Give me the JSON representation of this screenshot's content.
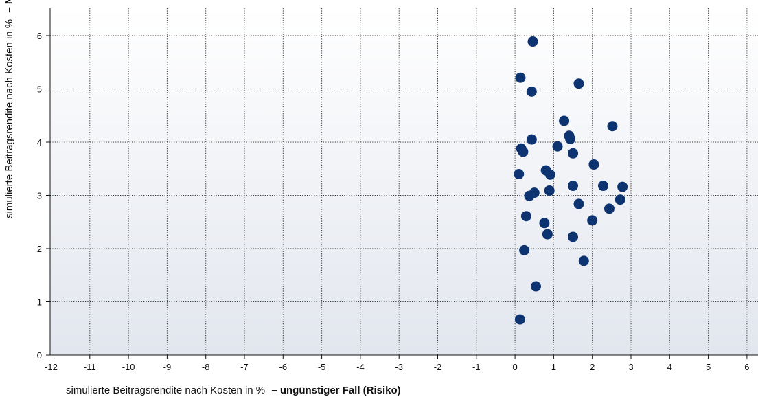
{
  "chart_data": {
    "type": "scatter",
    "xlabel_regular": "simulierte Beitragsrendite nach Kosten in %",
    "xlabel_bold": "– ungünstiger Fall (Risiko)",
    "ylabel_regular": "simulierte Beitragsrendite nach Kosten in %",
    "ylabel_bold": "– Normalfall",
    "xlim": [
      -12,
      6.2
    ],
    "ylim": [
      0,
      6.5
    ],
    "xticks": [
      -12,
      -11,
      -10,
      -9,
      -8,
      -7,
      -6,
      -5,
      -4,
      -3,
      -2,
      -1,
      0,
      1,
      2,
      3,
      4,
      5,
      6
    ],
    "yticks": [
      0,
      1,
      2,
      3,
      4,
      5,
      6
    ],
    "grid": true,
    "marker_color": "#0d3470",
    "background_gradient": [
      "#ffffff",
      "#e2e6ee"
    ],
    "points": [
      {
        "x": 0.46,
        "y": 5.89
      },
      {
        "x": 0.14,
        "y": 5.21
      },
      {
        "x": 0.43,
        "y": 4.95
      },
      {
        "x": 1.65,
        "y": 5.1
      },
      {
        "x": 1.27,
        "y": 4.4
      },
      {
        "x": 2.52,
        "y": 4.3
      },
      {
        "x": 1.4,
        "y": 4.12
      },
      {
        "x": 1.43,
        "y": 4.06
      },
      {
        "x": 0.43,
        "y": 4.05
      },
      {
        "x": 1.1,
        "y": 3.92
      },
      {
        "x": 0.16,
        "y": 3.88
      },
      {
        "x": 0.21,
        "y": 3.82
      },
      {
        "x": 1.5,
        "y": 3.79
      },
      {
        "x": 2.04,
        "y": 3.58
      },
      {
        "x": 0.8,
        "y": 3.47
      },
      {
        "x": 0.91,
        "y": 3.39
      },
      {
        "x": 0.1,
        "y": 3.4
      },
      {
        "x": 1.5,
        "y": 3.18
      },
      {
        "x": 2.28,
        "y": 3.18
      },
      {
        "x": 2.78,
        "y": 3.16
      },
      {
        "x": 0.89,
        "y": 3.09
      },
      {
        "x": 0.5,
        "y": 3.05
      },
      {
        "x": 0.37,
        "y": 2.99
      },
      {
        "x": 2.72,
        "y": 2.92
      },
      {
        "x": 1.65,
        "y": 2.84
      },
      {
        "x": 2.44,
        "y": 2.75
      },
      {
        "x": 0.29,
        "y": 2.61
      },
      {
        "x": 2.0,
        "y": 2.53
      },
      {
        "x": 0.76,
        "y": 2.48
      },
      {
        "x": 0.84,
        "y": 2.27
      },
      {
        "x": 1.5,
        "y": 2.22
      },
      {
        "x": 0.24,
        "y": 1.97
      },
      {
        "x": 1.78,
        "y": 1.77
      },
      {
        "x": 0.54,
        "y": 1.29
      },
      {
        "x": 0.13,
        "y": 0.67
      }
    ]
  }
}
